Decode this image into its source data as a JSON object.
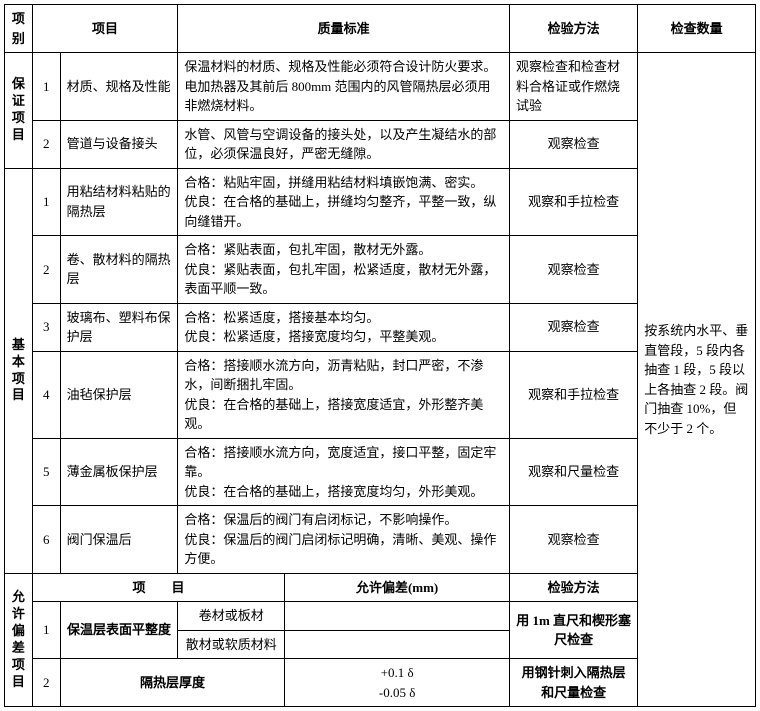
{
  "head": {
    "col_category": "项别",
    "col_item": "项目",
    "col_standard": "质量标准",
    "col_method": "检验方法",
    "col_qty": "检查数量"
  },
  "guarantee": {
    "label": "保证项目",
    "r1": {
      "no": "1",
      "item": "材质、规格及性能",
      "std": "保温材料的材质、规格及性能必须符合设计防火要求。电加热器及其前后 800mm 范围内的风管隔热层必须用非燃烧材料。",
      "method": "观察检查和检查材料合格证或作燃烧试验"
    },
    "r2": {
      "no": "2",
      "item": "管道与设备接头",
      "std": "水管、风管与空调设备的接头处，以及产生凝结水的部位，必须保温良好，严密无缝隙。",
      "method": "观察检查"
    }
  },
  "basic": {
    "label": "基本项目",
    "r1": {
      "no": "1",
      "item": "用粘结材料粘贴的隔热层",
      "std": "合格：粘贴牢固，拼缝用粘结材料填嵌饱满、密实。\n优良：在合格的基础上，拼缝均匀整齐，平整一致，纵向缝错开。",
      "method": "观察和手拉检查"
    },
    "r2": {
      "no": "2",
      "item": "卷、散材料的隔热层",
      "std": "合格：紧贴表面，包扎牢固，散材无外露。\n优良：紧贴表面，包扎牢固，松紧适度，散材无外露，表面平顺一致。",
      "method": "观察检查"
    },
    "r3": {
      "no": "3",
      "item": "玻璃布、塑料布保护层",
      "std": "合格：松紧适度，搭接基本均匀。\n优良：松紧适度，搭接宽度均匀，平整美观。",
      "method": "观察检查"
    },
    "r4": {
      "no": "4",
      "item": "油毡保护层",
      "std": "合格：搭接顺水流方向，沥青粘贴，封口严密，不渗水，间断捆扎牢固。\n优良：在合格的基础上，搭接宽度适宜，外形整齐美观。",
      "method": "观察和手拉检查"
    },
    "r5": {
      "no": "5",
      "item": "薄金属板保护层",
      "std": "合格：搭接顺水流方向，宽度适宜，接口平整，固定牢靠。\n优良：在合格的基础上，搭接宽度均匀，外形美观。",
      "method": "观察和尺量检查"
    },
    "r6": {
      "no": "6",
      "item": "阀门保温后",
      "std": "合格：保温后的阀门有启闭标记，不影响操作。\n优良：保温后的阀门启闭标记明确，清晰、美观、操作方便。",
      "method": "观察检查"
    }
  },
  "tolerance": {
    "label": "允许偏差项目",
    "hdr_item": "项　　目",
    "hdr_dev": "允许偏差(mm)",
    "hdr_method": "检验方法",
    "r1": {
      "no": "1",
      "item": "保温层表面平整度",
      "sub1": "卷材或板材",
      "sub2": "散材或软质材料",
      "method": "用 1m 直尺和楔形塞尺检查"
    },
    "r2": {
      "no": "2",
      "item": "隔热层厚度",
      "dev": "+0.1 δ\n-0.05 δ",
      "method": "用钢针刺入隔热层和尺量检查"
    }
  },
  "qty_text": "按系统内水平、垂直管段，5 段内各抽查 1 段，5 段以上各抽查 2 段。阀门抽查 10%，但不少于 2 个。"
}
